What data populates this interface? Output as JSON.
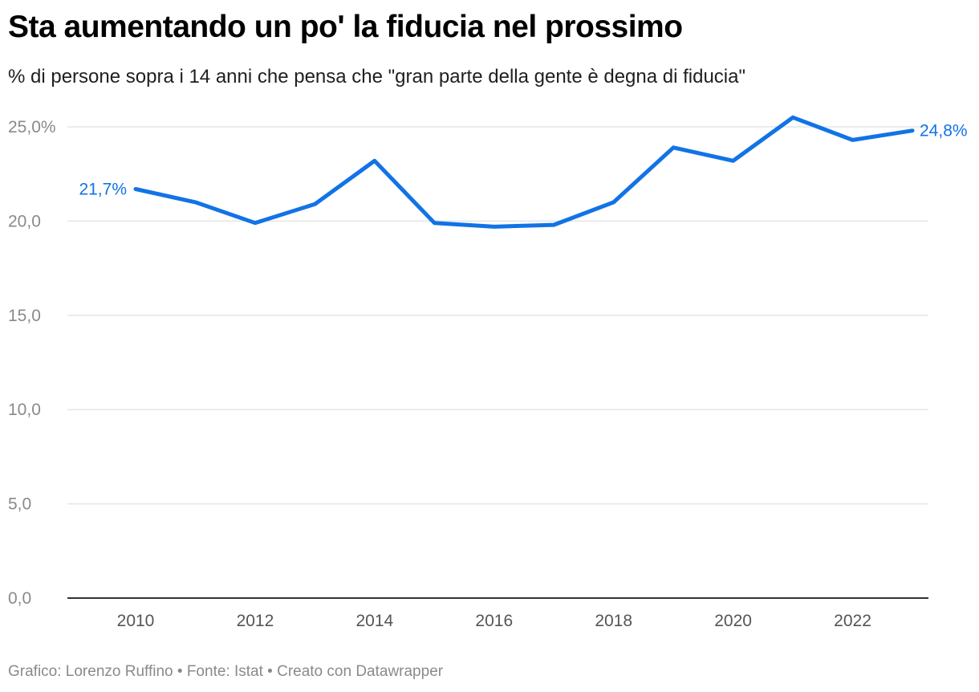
{
  "title": "Sta aumentando un po' la fiducia nel prossimo",
  "subtitle": "% di persone sopra i 14 anni che pensa che \"gran parte della gente è degna di fiducia\"",
  "footer": {
    "credit": "Grafico: Lorenzo Ruffino",
    "separator": "•",
    "source": "Fonte: Istat",
    "tool": "Creato con Datawrapper"
  },
  "colors": {
    "line": "#1273e6",
    "grid": "#e5e5e5",
    "axis": "#333333"
  },
  "chart_data": {
    "type": "line",
    "title": "Sta aumentando un po' la fiducia nel prossimo",
    "xlabel": "",
    "ylabel": "",
    "x": [
      2010,
      2011,
      2012,
      2013,
      2014,
      2015,
      2016,
      2017,
      2018,
      2019,
      2020,
      2021,
      2022,
      2023
    ],
    "series": [
      {
        "name": "Fiducia nel prossimo",
        "values": [
          21.7,
          21.0,
          19.9,
          20.9,
          23.2,
          19.9,
          19.7,
          19.8,
          21.0,
          23.9,
          23.2,
          25.5,
          24.3,
          24.8
        ]
      }
    ],
    "ylim": [
      0,
      25
    ],
    "yticks": [
      0,
      5,
      10,
      15,
      20,
      25
    ],
    "ytick_labels": [
      "0,0",
      "5,0",
      "10,0",
      "15,0",
      "20,0",
      "25,0%"
    ],
    "xticks": [
      2010,
      2012,
      2014,
      2016,
      2018,
      2020,
      2022
    ],
    "xtick_labels": [
      "2010",
      "2012",
      "2014",
      "2016",
      "2018",
      "2020",
      "2022"
    ],
    "annotations": {
      "start": "21,7%",
      "end": "24,8%"
    },
    "grid": true,
    "legend": "none"
  }
}
